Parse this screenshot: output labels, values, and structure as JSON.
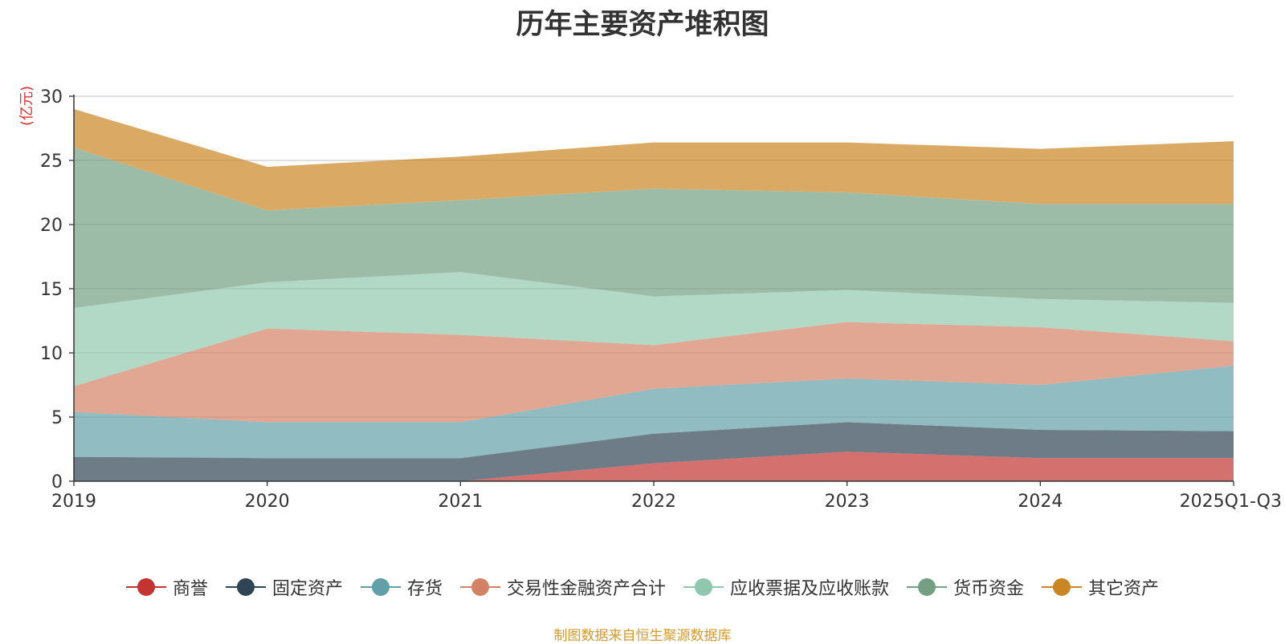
{
  "title": "历年主要资产堆积图",
  "unit_label": "(亿元)",
  "source_note": "制图数据来自恒生聚源数据库",
  "chart_data": {
    "type": "area",
    "stacked": true,
    "title": "历年主要资产堆积图",
    "ylabel": "(亿元)",
    "ylim": [
      0,
      30
    ],
    "yticks": [
      0,
      5,
      10,
      15,
      20,
      25,
      30
    ],
    "categories": [
      "2019",
      "2020",
      "2021",
      "2022",
      "2023",
      "2024",
      "2025Q1-Q3"
    ],
    "series": [
      {
        "name": "商誉",
        "color": "#c23531",
        "values": [
          0,
          0,
          0,
          1.4,
          2.3,
          1.8,
          1.8
        ]
      },
      {
        "name": "固定资产",
        "color": "#2f4554",
        "values": [
          1.9,
          1.8,
          1.8,
          2.3,
          2.3,
          2.2,
          2.1
        ]
      },
      {
        "name": "存货",
        "color": "#61a0a8",
        "values": [
          3.5,
          2.8,
          2.8,
          3.5,
          3.4,
          3.5,
          5.1
        ]
      },
      {
        "name": "交易性金融资产合计",
        "color": "#d48265",
        "values": [
          2.0,
          7.3,
          6.8,
          3.4,
          4.4,
          4.5,
          1.9
        ]
      },
      {
        "name": "应收票据及应收账款",
        "color": "#91c7ae",
        "values": [
          6.1,
          3.6,
          4.9,
          3.8,
          2.5,
          2.2,
          3.0
        ]
      },
      {
        "name": "货币资金",
        "color": "#749f83",
        "values": [
          12.5,
          5.6,
          5.6,
          8.4,
          7.6,
          7.4,
          7.7
        ]
      },
      {
        "name": "其它资产",
        "color": "#ca8622",
        "values": [
          3.0,
          3.4,
          3.4,
          3.6,
          3.9,
          4.3,
          4.9
        ]
      }
    ]
  }
}
